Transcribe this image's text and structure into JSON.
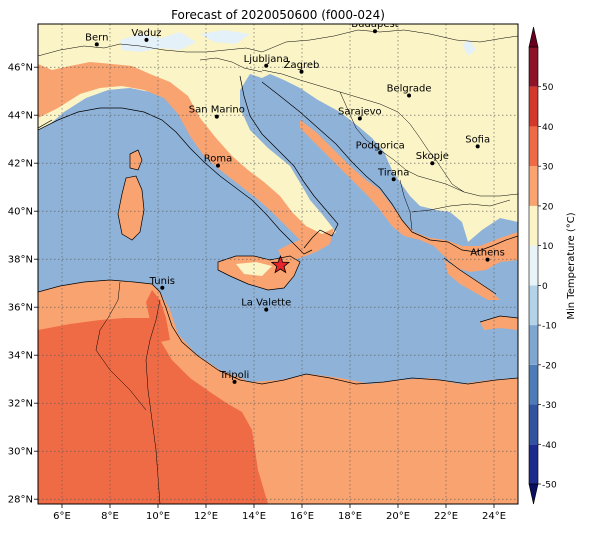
{
  "title": "Forecast of 2020050600 (f000-024)",
  "map": {
    "lon_ticks": [
      {
        "lon": 6,
        "label": "6°E"
      },
      {
        "lon": 8,
        "label": "8°E"
      },
      {
        "lon": 10,
        "label": "10°E"
      },
      {
        "lon": 12,
        "label": "12°E"
      },
      {
        "lon": 14,
        "label": "14°E"
      },
      {
        "lon": 16,
        "label": "16°E"
      },
      {
        "lon": 18,
        "label": "18°E"
      },
      {
        "lon": 20,
        "label": "20°E"
      },
      {
        "lon": 22,
        "label": "22°E"
      },
      {
        "lon": 24,
        "label": "24°E"
      }
    ],
    "lat_ticks": [
      {
        "lat": 28,
        "label": "28°N"
      },
      {
        "lat": 30,
        "label": "30°N"
      },
      {
        "lat": 32,
        "label": "32°N"
      },
      {
        "lat": 34,
        "label": "34°N"
      },
      {
        "lat": 36,
        "label": "36°N"
      },
      {
        "lat": 38,
        "label": "38°N"
      },
      {
        "lat": 40,
        "label": "40°N"
      },
      {
        "lat": 42,
        "label": "42°N"
      },
      {
        "lat": 44,
        "label": "44°N"
      },
      {
        "lat": 46,
        "label": "46°N"
      }
    ],
    "lon_range": [
      5,
      25
    ],
    "lat_range": [
      27.8,
      47.8
    ],
    "cities": [
      {
        "name": "Bern",
        "lon": 7.45,
        "lat": 46.95
      },
      {
        "name": "Vaduz",
        "lon": 9.52,
        "lat": 47.14
      },
      {
        "name": "Budapest",
        "lon": 19.04,
        "lat": 47.5
      },
      {
        "name": "Ljubljana",
        "lon": 14.51,
        "lat": 46.06
      },
      {
        "name": "Zagreb",
        "lon": 15.98,
        "lat": 45.81
      },
      {
        "name": "Belgrade",
        "lon": 20.46,
        "lat": 44.82
      },
      {
        "name": "San Marino",
        "lon": 12.45,
        "lat": 43.94
      },
      {
        "name": "Sarajevo",
        "lon": 18.41,
        "lat": 43.86
      },
      {
        "name": "Sofia",
        "lon": 23.32,
        "lat": 42.7
      },
      {
        "name": "Podgorica",
        "lon": 19.26,
        "lat": 42.44
      },
      {
        "name": "Skopje",
        "lon": 21.43,
        "lat": 42.0
      },
      {
        "name": "Roma",
        "lon": 12.5,
        "lat": 41.9
      },
      {
        "name": "Tirana",
        "lon": 19.82,
        "lat": 41.33
      },
      {
        "name": "Athens",
        "lon": 23.73,
        "lat": 37.98
      },
      {
        "name": "Tunis",
        "lon": 10.18,
        "lat": 36.81
      },
      {
        "name": "La Valette",
        "lon": 14.51,
        "lat": 35.9
      },
      {
        "name": "Tripoli",
        "lon": 13.19,
        "lat": 32.89
      }
    ],
    "star": {
      "lon": 15.1,
      "lat": 37.75
    }
  },
  "colorbar": {
    "label": "Min Temperature (°C)",
    "levels": [
      -50,
      -40,
      -30,
      -20,
      -10,
      0,
      10,
      20,
      30,
      40,
      50
    ],
    "colors": [
      "#1b2a8c",
      "#3153a0",
      "#4f7bb8",
      "#7ea6d1",
      "#b3d4e8",
      "#e8f4f8",
      "#fbf4c6",
      "#f9a371",
      "#ef6b45",
      "#d4382a",
      "#8e1228"
    ],
    "under_color": "#0a1060",
    "over_color": "#67001f",
    "tick_labels": [
      "-50",
      "-40",
      "-30",
      "-20",
      "-10",
      "0",
      "10",
      "20",
      "30",
      "40",
      "50"
    ]
  },
  "colors": {
    "sea": "#8fb2d8",
    "land_cool": "#fbf4c6",
    "land_mild": "#f9a371",
    "land_warm": "#ef6b45",
    "snow": "#e4f1f8"
  }
}
